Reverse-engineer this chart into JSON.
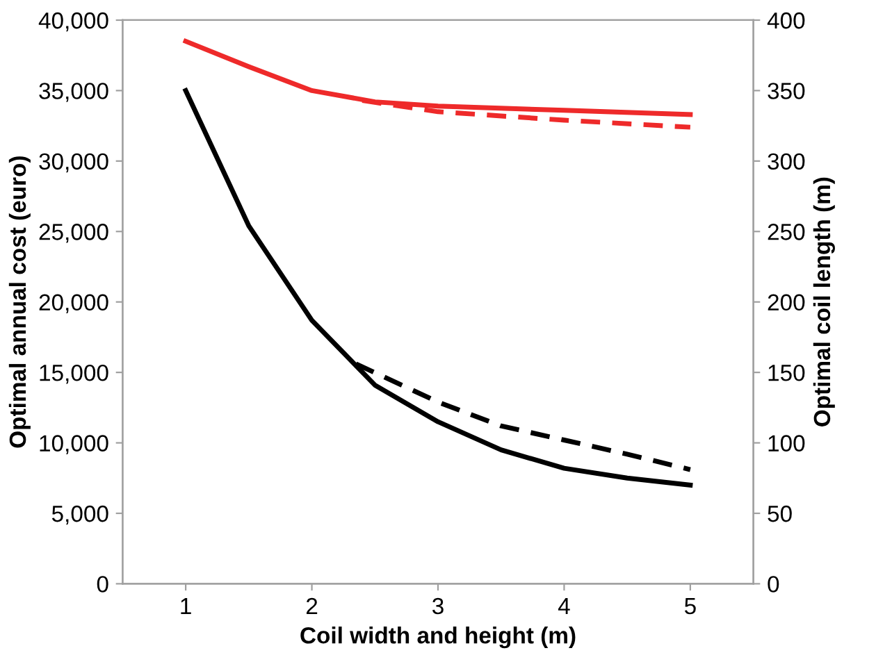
{
  "chart_data": {
    "type": "line",
    "xlabel": "Coil width and height (m)",
    "ylabel": "Optimal annual cost (euro)",
    "y2label": "Optimal coil length (m)",
    "xlim": [
      0.5,
      5.5
    ],
    "xticks": [
      1,
      2,
      3,
      4,
      5
    ],
    "ylim": [
      0,
      40000
    ],
    "yticks": [
      {
        "value": 0,
        "label": "0"
      },
      {
        "value": 5000,
        "label": "5,000"
      },
      {
        "value": 10000,
        "label": "10,000"
      },
      {
        "value": 15000,
        "label": "15,000"
      },
      {
        "value": 20000,
        "label": "20,000"
      },
      {
        "value": 25000,
        "label": "25,000"
      },
      {
        "value": 30000,
        "label": "30,000"
      },
      {
        "value": 35000,
        "label": "35,000"
      },
      {
        "value": 40000,
        "label": "40,000"
      }
    ],
    "y2lim": [
      0,
      400
    ],
    "y2ticks": [
      0,
      50,
      100,
      150,
      200,
      250,
      300,
      350,
      400
    ],
    "grid": false,
    "marker": "none",
    "series": [
      {
        "color": "#ee2a2a",
        "line_style": "solid",
        "x": [
          1,
          1.5,
          2,
          2.5,
          3,
          4,
          5
        ],
        "values": [
          38500,
          36700,
          35000,
          34200,
          33900,
          33600,
          33300
        ]
      },
      {
        "color": "#ee2a2a",
        "line_style": "dashed",
        "x": [
          2.4,
          3,
          4,
          5
        ],
        "values": [
          34300,
          33500,
          32900,
          32400
        ]
      },
      {
        "color": "#000000",
        "line_style": "solid",
        "axis": "y2",
        "x": [
          1,
          1.5,
          2,
          2.5,
          3,
          3.5,
          4,
          4.5,
          5
        ],
        "values": [
          350,
          254,
          187,
          141,
          115,
          95,
          82,
          75,
          70
        ]
      },
      {
        "color": "#000000",
        "line_style": "dashed",
        "axis": "y2",
        "x": [
          2.35,
          3,
          3.5,
          4,
          4.5,
          5
        ],
        "values": [
          156,
          129,
          112,
          102,
          92,
          81
        ]
      }
    ]
  }
}
